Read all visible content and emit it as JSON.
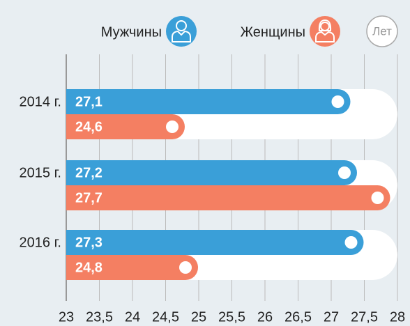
{
  "chart_data": {
    "type": "bar",
    "orientation": "horizontal",
    "categories": [
      "2014 г.",
      "2015 г.",
      "2016 г."
    ],
    "series": [
      {
        "name": "Мужчины",
        "color": "#3a9fd8",
        "values": [
          27.1,
          27.2,
          27.3
        ],
        "value_labels": [
          "27,1",
          "27,2",
          "27,3"
        ]
      },
      {
        "name": "Женщины",
        "color": "#f47f62",
        "values": [
          24.6,
          27.7,
          24.8
        ],
        "value_labels": [
          "24,6",
          "27,7",
          "24,8"
        ]
      }
    ],
    "unit_label": "Лет",
    "xlim": [
      23,
      28
    ],
    "xticks": [
      23,
      {
        "value": 23.5,
        "label": "23,5"
      },
      24,
      {
        "value": 24.5,
        "label": "24,5"
      },
      25,
      {
        "value": 25.5,
        "label": "25,5"
      },
      26,
      {
        "value": 26.5,
        "label": "26,5"
      },
      27,
      {
        "value": 27.5,
        "label": "27,5"
      },
      28
    ],
    "grid": true
  }
}
